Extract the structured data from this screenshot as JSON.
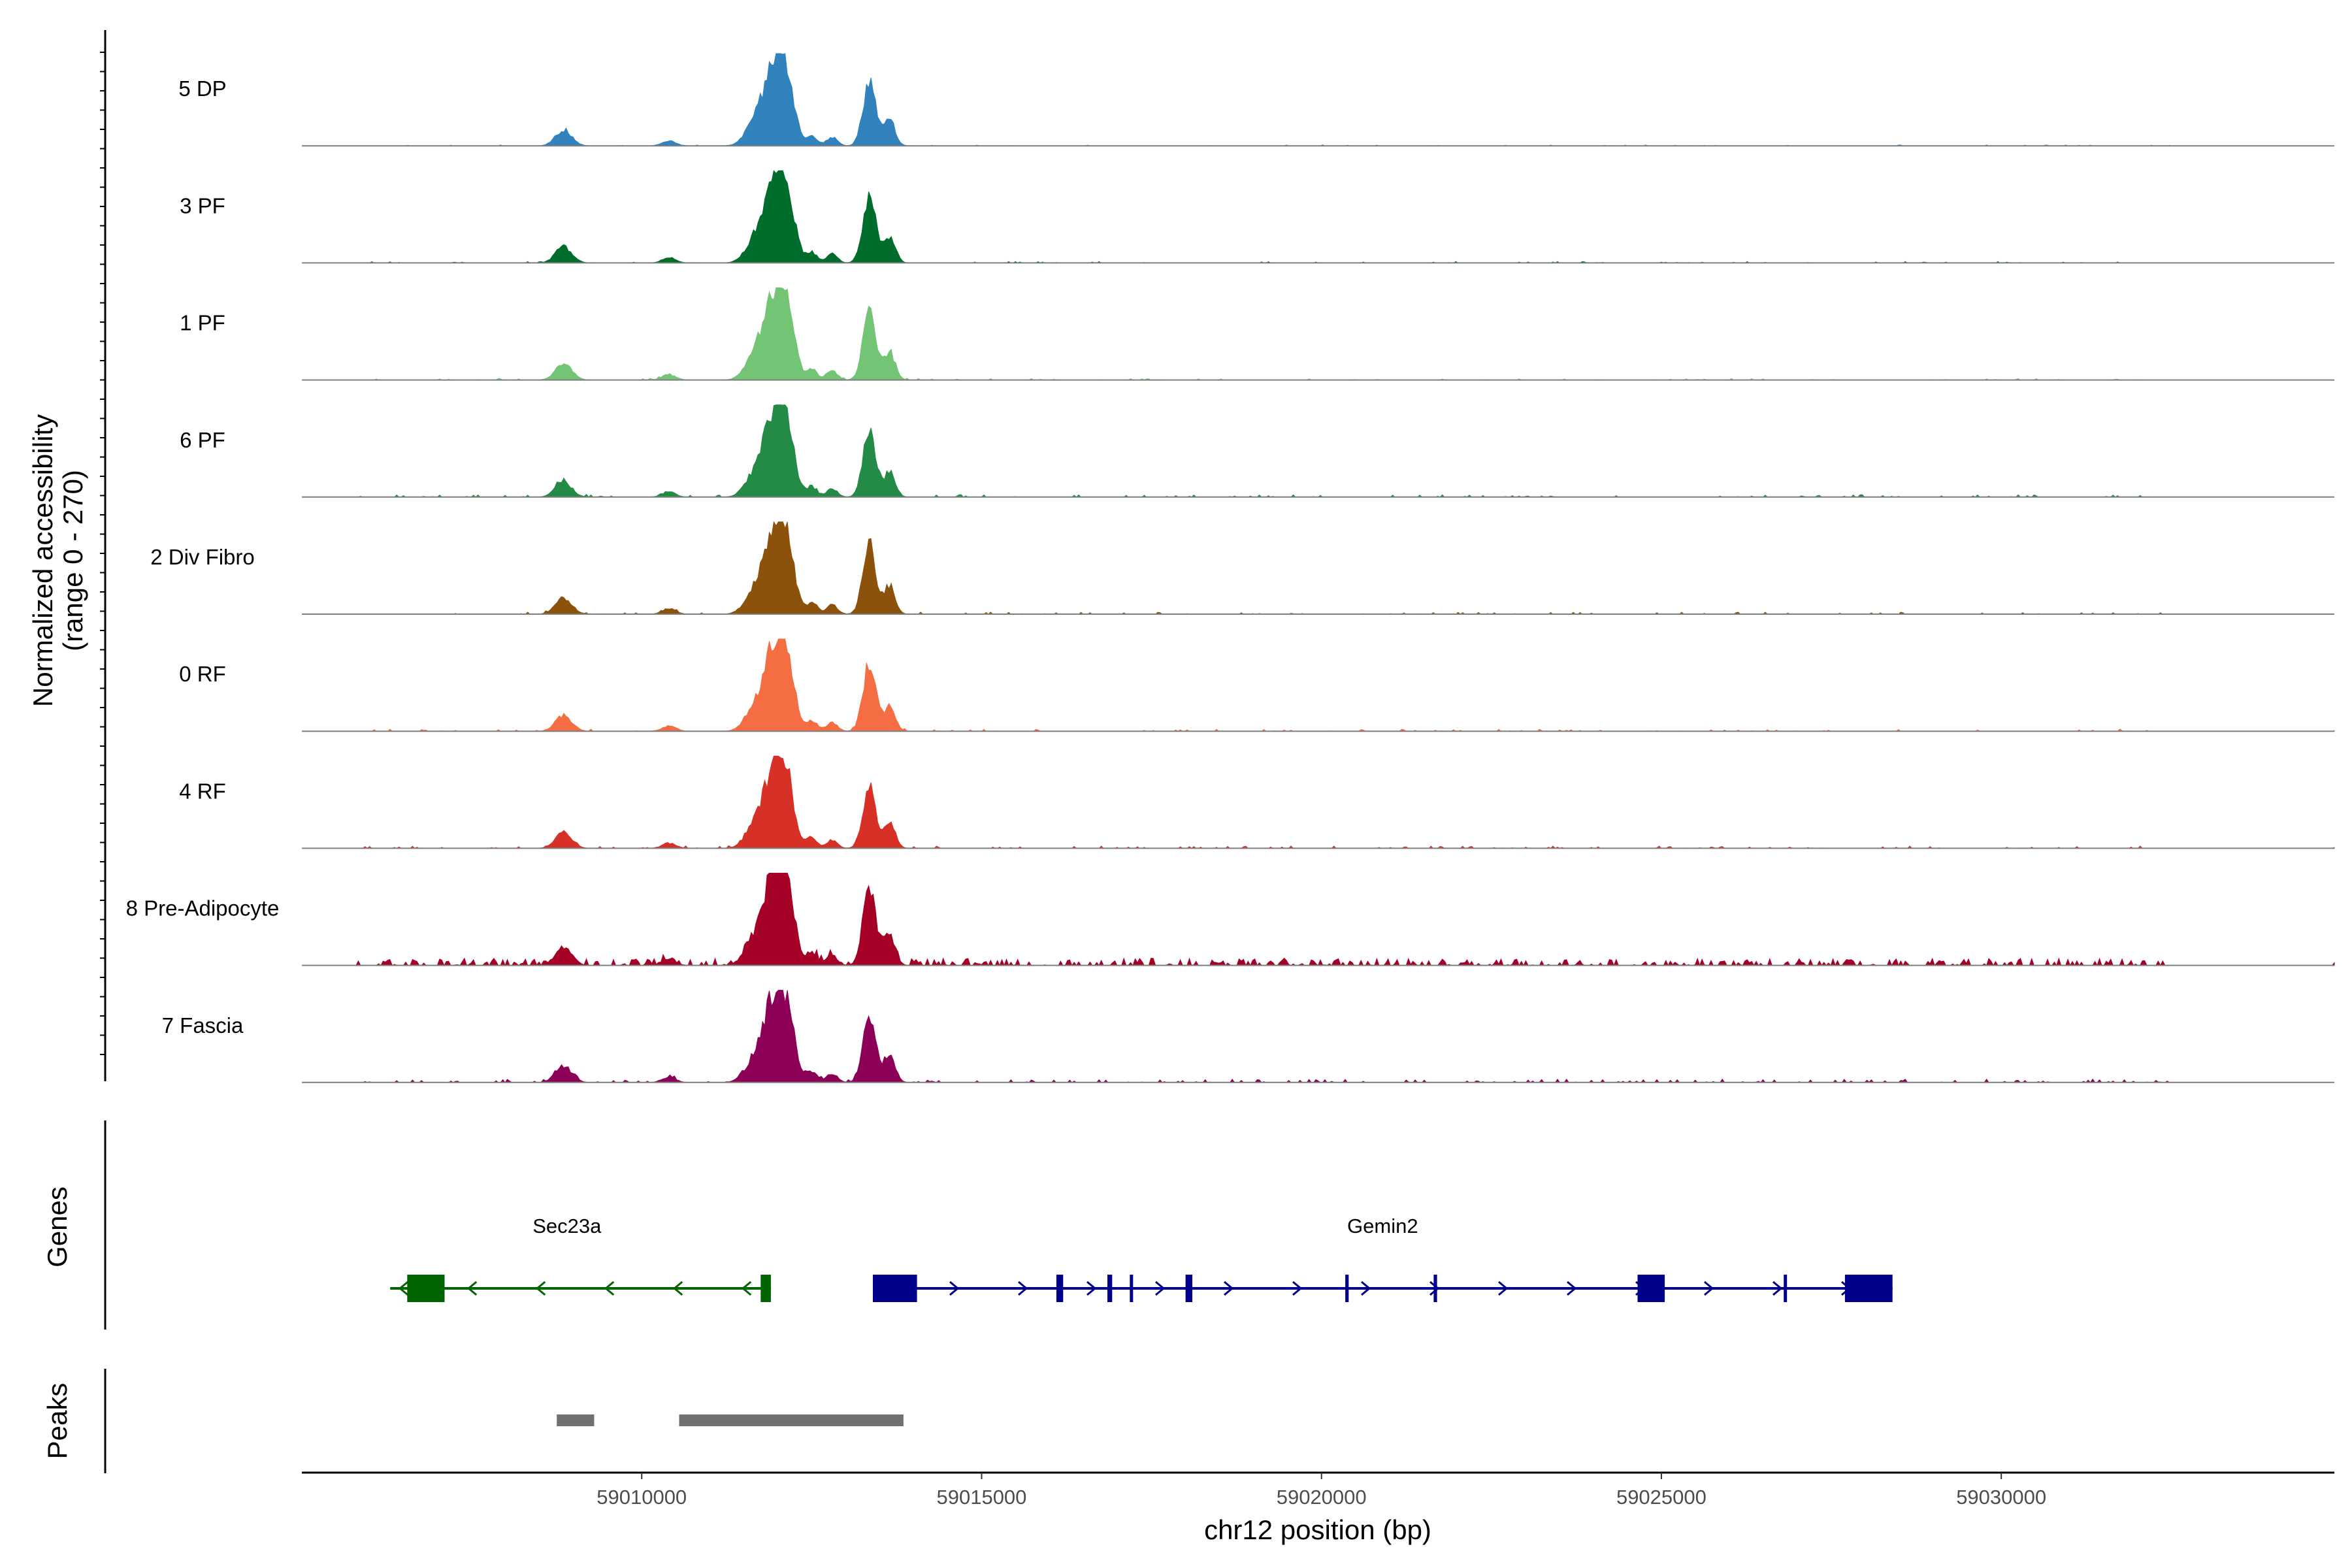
{
  "chart_data": {
    "type": "area",
    "title": "",
    "ylabel_line1": "Normalized accessibility",
    "ylabel_line2": "(range 0 - 270)",
    "y_range": [
      0,
      270
    ],
    "xlabel": "chr12 position (bp)",
    "xlim": [
      59005000,
      59034900
    ],
    "x_ticks": [
      59010000,
      59015000,
      59020000,
      59025000,
      59030000
    ],
    "x_tick_labels": [
      "59010000",
      "59015000",
      "59020000",
      "59025000",
      "59030000"
    ],
    "tracks": [
      {
        "name": "5 DP",
        "color": "#3182bd",
        "scale": 0.94,
        "noise": 0.35
      },
      {
        "name": "3 PF",
        "color": "#006d2c",
        "scale": 0.98,
        "noise": 0.5
      },
      {
        "name": "1 PF",
        "color": "#74c476",
        "scale": 1.0,
        "noise": 0.55
      },
      {
        "name": "6 PF",
        "color": "#238b45",
        "scale": 0.94,
        "noise": 0.85
      },
      {
        "name": "2 Div Fibro",
        "color": "#8c510a",
        "scale": 1.0,
        "noise": 0.75
      },
      {
        "name": "0 RF",
        "color": "#f46d43",
        "scale": 0.96,
        "noise": 0.75
      },
      {
        "name": "4 RF",
        "color": "#d73027",
        "scale": 0.92,
        "noise": 0.8
      },
      {
        "name": "8 Pre-Adipocyte",
        "color": "#a50026",
        "scale": 1.12,
        "noise": 2.6
      },
      {
        "name": "7 Fascia",
        "color": "#8c0058",
        "scale": 0.98,
        "noise": 1.2
      }
    ],
    "peaks_profile": [
      {
        "center": 59008850,
        "width": 120,
        "height": 0.18
      },
      {
        "center": 59010400,
        "width": 100,
        "height": 0.06
      },
      {
        "center": 59011650,
        "width": 140,
        "height": 0.22
      },
      {
        "center": 59011950,
        "width": 150,
        "height": 0.9
      },
      {
        "center": 59012150,
        "width": 110,
        "height": 0.55
      },
      {
        "center": 59012500,
        "width": 80,
        "height": 0.12
      },
      {
        "center": 59012800,
        "width": 80,
        "height": 0.1
      },
      {
        "center": 59013350,
        "width": 95,
        "height": 0.75
      },
      {
        "center": 59013650,
        "width": 80,
        "height": 0.3
      }
    ],
    "genes_panel_label": "Genes",
    "genes": [
      {
        "name": "Sec23a",
        "strand": "-",
        "color": "#006400",
        "start": 59006300,
        "end": 59011900,
        "exons": [
          [
            59006550,
            59007100
          ],
          [
            59011750,
            59011900
          ]
        ]
      },
      {
        "name": "Gemin2",
        "strand": "+",
        "color": "#00008b",
        "start": 59013400,
        "end": 59028400,
        "exons": [
          [
            59013400,
            59014050
          ],
          [
            59016100,
            59016200
          ],
          [
            59016850,
            59016920
          ],
          [
            59017180,
            59017220
          ],
          [
            59018000,
            59018100
          ],
          [
            59020350,
            59020400
          ],
          [
            59021650,
            59021700
          ],
          [
            59024650,
            59025050
          ],
          [
            59026800,
            59026840
          ],
          [
            59027700,
            59028400
          ]
        ]
      }
    ],
    "peaks_panel_label": "Peaks",
    "peaks": [
      [
        59008750,
        59009300
      ],
      [
        59010550,
        59013850
      ]
    ],
    "peak_color": "#707070"
  }
}
